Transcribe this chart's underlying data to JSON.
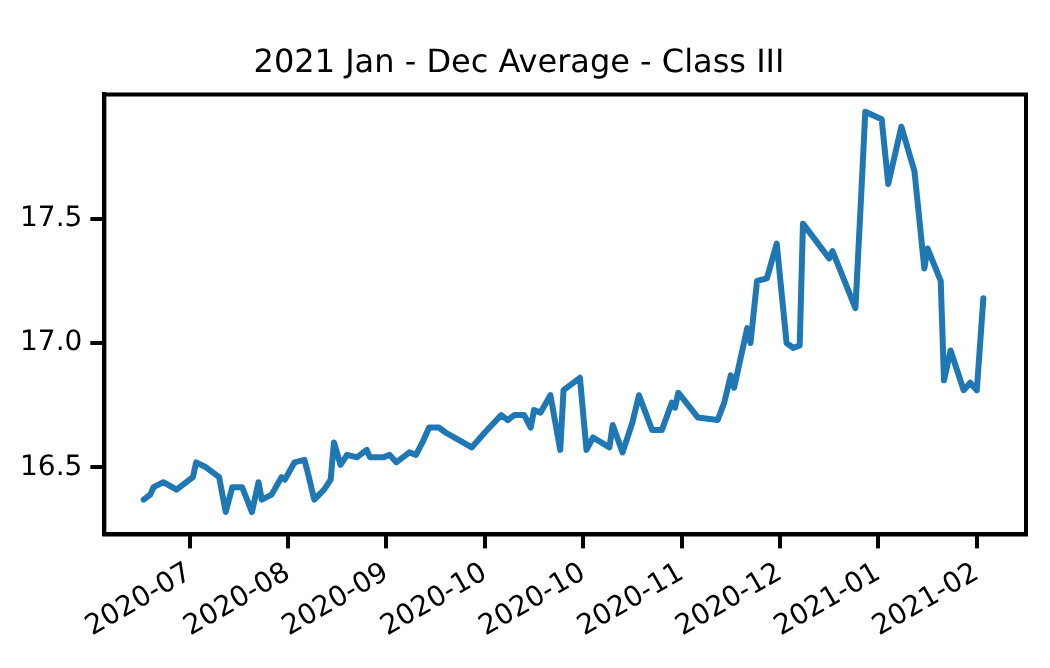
{
  "chart_data": {
    "type": "line",
    "title": "2021 Jan - Dec Average - Class III",
    "x": [
      "2020-06-19",
      "2020-06-21",
      "2020-06-22",
      "2020-06-25",
      "2020-06-29",
      "2020-07-02",
      "2020-07-04",
      "2020-07-05",
      "2020-07-08",
      "2020-07-12",
      "2020-07-14",
      "2020-07-16",
      "2020-07-19",
      "2020-07-22",
      "2020-07-24",
      "2020-07-25",
      "2020-07-28",
      "2020-07-31",
      "2020-08-01",
      "2020-08-04",
      "2020-08-07",
      "2020-08-08",
      "2020-08-10",
      "2020-08-13",
      "2020-08-15",
      "2020-08-16",
      "2020-08-18",
      "2020-08-20",
      "2020-08-23",
      "2020-08-26",
      "2020-08-27",
      "2020-08-31",
      "2020-09-02",
      "2020-09-04",
      "2020-09-08",
      "2020-09-10",
      "2020-09-12",
      "2020-09-14",
      "2020-09-17",
      "2020-09-19",
      "2020-09-23",
      "2020-09-27",
      "2020-10-01",
      "2020-10-06",
      "2020-10-08",
      "2020-10-10",
      "2020-10-13",
      "2020-10-15",
      "2020-10-16",
      "2020-10-18",
      "2020-10-21",
      "2020-10-24",
      "2020-10-25",
      "2020-10-30",
      "2020-11-01",
      "2020-11-03",
      "2020-11-08",
      "2020-11-09",
      "2020-11-12",
      "2020-11-15",
      "2020-11-17",
      "2020-11-19",
      "2020-11-21",
      "2020-11-24",
      "2020-11-27",
      "2020-11-28",
      "2020-11-29",
      "2020-12-05",
      "2020-12-11",
      "2020-12-13",
      "2020-12-15",
      "2020-12-16",
      "2020-12-20",
      "2020-12-21",
      "2020-12-23",
      "2020-12-26",
      "2020-12-29",
      "2021-01-01",
      "2021-01-03",
      "2021-01-05",
      "2021-01-06",
      "2021-01-14",
      "2021-01-15",
      "2021-01-22",
      "2021-01-24",
      "2021-01-25",
      "2021-01-30",
      "2021-02-01",
      "2021-02-05",
      "2021-02-09",
      "2021-02-12",
      "2021-02-13",
      "2021-02-17",
      "2021-02-18",
      "2021-02-20",
      "2021-02-24",
      "2021-02-26",
      "2021-02-28",
      "2021-03-02"
    ],
    "series": [
      {
        "color": "#1f77b4",
        "values": [
          16.37,
          16.39,
          16.42,
          16.44,
          16.41,
          16.44,
          16.46,
          16.52,
          16.5,
          16.46,
          16.32,
          16.42,
          16.42,
          16.32,
          16.44,
          16.37,
          16.39,
          16.46,
          16.45,
          16.52,
          16.53,
          16.48,
          16.37,
          16.41,
          16.45,
          16.6,
          16.51,
          16.55,
          16.54,
          16.57,
          16.54,
          16.54,
          16.55,
          16.52,
          16.56,
          16.55,
          16.6,
          16.66,
          16.66,
          16.64,
          16.61,
          16.58,
          16.64,
          16.71,
          16.69,
          16.71,
          16.71,
          16.66,
          16.73,
          16.72,
          16.79,
          16.57,
          16.81,
          16.86,
          16.57,
          16.62,
          16.58,
          16.67,
          16.56,
          16.68,
          16.79,
          16.72,
          16.65,
          16.65,
          16.76,
          16.74,
          16.8,
          16.7,
          16.69,
          16.76,
          16.87,
          16.82,
          17.06,
          17.0,
          17.25,
          17.26,
          17.4,
          17.0,
          16.98,
          16.99,
          17.48,
          17.34,
          17.37,
          17.14,
          17.66,
          17.93,
          17.9,
          17.64,
          17.87,
          17.69,
          17.3,
          17.38,
          17.25,
          16.85,
          16.97,
          16.81,
          16.84,
          16.81,
          17.18
        ]
      }
    ],
    "xlim": [
      "2020-06-07",
      "2021-03-15"
    ],
    "xticks": [
      {
        "value": "2020-07-03",
        "label": "2020-07"
      },
      {
        "value": "2020-08-02",
        "label": "2020-08"
      },
      {
        "value": "2020-09-01",
        "label": "2020-09"
      },
      {
        "value": "2020-10-01",
        "label": "2020-10"
      },
      {
        "value": "2020-10-31",
        "label": "2020-10"
      },
      {
        "value": "2020-11-30",
        "label": "2020-11"
      },
      {
        "value": "2020-12-30",
        "label": "2020-12"
      },
      {
        "value": "2021-01-29",
        "label": "2021-01"
      },
      {
        "value": "2021-02-28",
        "label": "2021-02"
      }
    ],
    "ylim": [
      16.23,
      18.0
    ],
    "yticks": [
      16.5,
      {
        "value": 17.0,
        "label": "17.0"
      },
      17.5
    ]
  }
}
